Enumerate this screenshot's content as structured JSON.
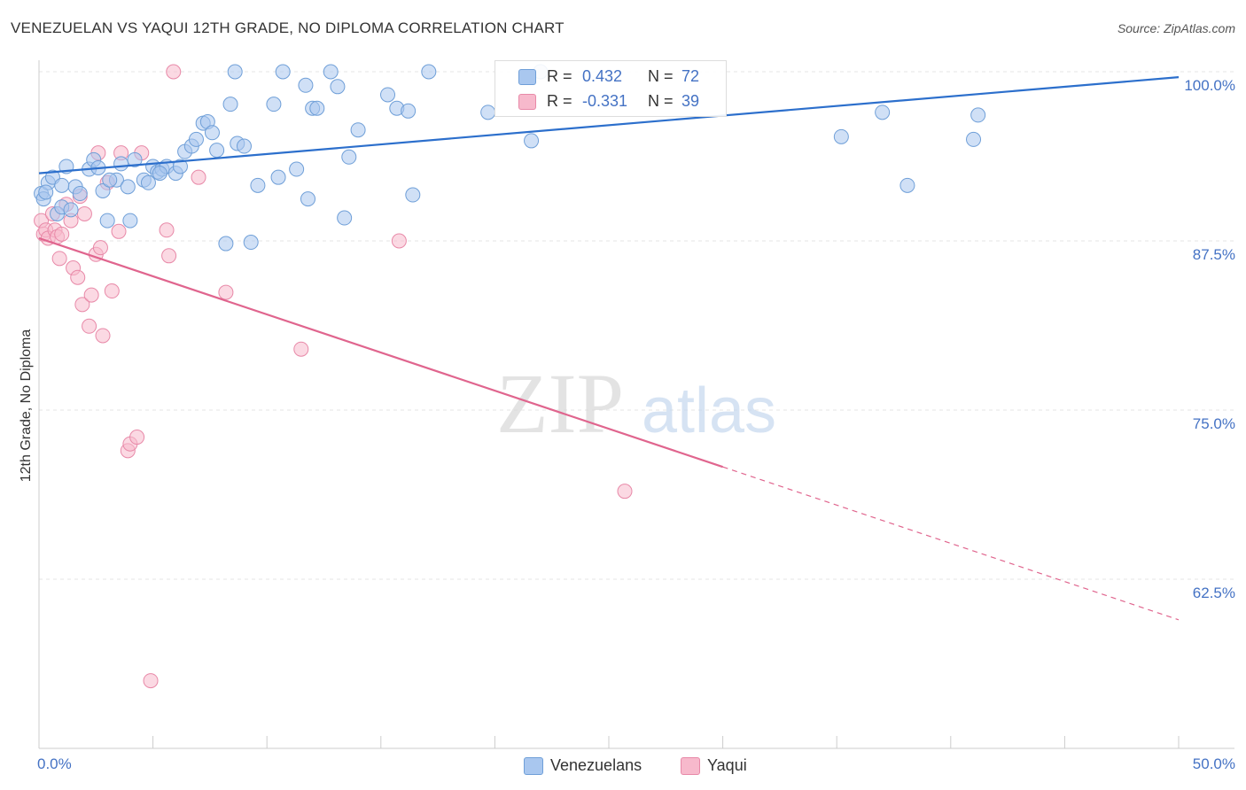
{
  "header": {
    "title": "VENEZUELAN VS YAQUI 12TH GRADE, NO DIPLOMA CORRELATION CHART",
    "source": "Source: ZipAtlas.com"
  },
  "watermark": {
    "zip": "ZIP",
    "atlas": "atlas"
  },
  "legend_top": {
    "rows": [
      {
        "r_label": "R =",
        "r_value": "0.432",
        "n_label": "N =",
        "n_value": "72"
      },
      {
        "r_label": "R =",
        "r_value": "-0.331",
        "n_label": "N =",
        "n_value": "39"
      }
    ]
  },
  "legend_bottom": {
    "series1": "Venezuelans",
    "series2": "Yaqui"
  },
  "colors": {
    "series1_fill": "#a9c7ef",
    "series1_stroke": "#6f9fd8",
    "series1_line": "#2c6fcc",
    "series2_fill": "#f7b9cc",
    "series2_stroke": "#e889a8",
    "series2_line": "#e0658e",
    "tick_label": "#4472c4"
  },
  "chart_data": {
    "type": "scatter",
    "title": "VENEZUELAN VS YAQUI 12TH GRADE, NO DIPLOMA CORRELATION CHART",
    "xlabel": "",
    "ylabel": "12th Grade, No Diploma",
    "xlim": [
      0,
      50
    ],
    "ylim": [
      50,
      102
    ],
    "x_tick_labels": [
      "0.0%",
      "50.0%"
    ],
    "y_ticks": [
      62.5,
      75.0,
      87.5,
      100.0
    ],
    "y_tick_labels": [
      "62.5%",
      "75.0%",
      "87.5%",
      "100.0%"
    ],
    "grid": true,
    "legend_placement": "top-center",
    "series": [
      {
        "name": "Venezuelans",
        "r": 0.432,
        "n": 72,
        "trend": {
          "x": [
            0,
            50
          ],
          "y": [
            92.5,
            99.6
          ]
        },
        "points": [
          [
            0.1,
            91.0
          ],
          [
            0.2,
            90.6
          ],
          [
            0.4,
            91.8
          ],
          [
            0.6,
            92.2
          ],
          [
            0.8,
            89.5
          ],
          [
            1.0,
            90.0
          ],
          [
            1.2,
            93.0
          ],
          [
            1.4,
            89.8
          ],
          [
            1.6,
            91.5
          ],
          [
            1.8,
            91.0
          ],
          [
            2.2,
            92.8
          ],
          [
            2.4,
            93.5
          ],
          [
            2.6,
            92.9
          ],
          [
            2.8,
            91.2
          ],
          [
            3.0,
            89.0
          ],
          [
            3.4,
            92.0
          ],
          [
            3.6,
            93.2
          ],
          [
            3.9,
            91.5
          ],
          [
            4.0,
            89.0
          ],
          [
            4.2,
            93.5
          ],
          [
            4.6,
            92.0
          ],
          [
            4.8,
            91.8
          ],
          [
            5.0,
            93.0
          ],
          [
            5.2,
            92.6
          ],
          [
            5.4,
            92.8
          ],
          [
            5.6,
            93.0
          ],
          [
            6.0,
            92.5
          ],
          [
            6.2,
            93.0
          ],
          [
            6.4,
            94.1
          ],
          [
            6.7,
            94.5
          ],
          [
            6.9,
            95.0
          ],
          [
            7.2,
            96.2
          ],
          [
            7.4,
            96.3
          ],
          [
            7.6,
            95.5
          ],
          [
            7.8,
            94.2
          ],
          [
            8.2,
            87.3
          ],
          [
            8.4,
            97.6
          ],
          [
            8.6,
            100.0
          ],
          [
            8.7,
            94.7
          ],
          [
            9.0,
            94.5
          ],
          [
            9.3,
            87.4
          ],
          [
            9.6,
            91.6
          ],
          [
            10.3,
            97.6
          ],
          [
            10.5,
            92.2
          ],
          [
            10.7,
            100.0
          ],
          [
            11.3,
            92.8
          ],
          [
            11.7,
            99.0
          ],
          [
            11.8,
            90.6
          ],
          [
            12.0,
            97.3
          ],
          [
            12.2,
            97.3
          ],
          [
            12.8,
            100.0
          ],
          [
            13.1,
            98.9
          ],
          [
            13.4,
            89.2
          ],
          [
            13.6,
            93.7
          ],
          [
            14.0,
            95.7
          ],
          [
            15.3,
            98.3
          ],
          [
            15.7,
            97.3
          ],
          [
            16.2,
            97.1
          ],
          [
            16.4,
            90.9
          ],
          [
            17.1,
            100.0
          ],
          [
            19.7,
            97.0
          ],
          [
            21.6,
            94.9
          ],
          [
            22.0,
            100.0
          ],
          [
            35.2,
            95.2
          ],
          [
            37.0,
            97.0
          ],
          [
            38.1,
            91.6
          ],
          [
            41.0,
            95.0
          ],
          [
            41.2,
            96.8
          ],
          [
            0.3,
            91.1
          ],
          [
            1.0,
            91.6
          ],
          [
            3.1,
            92.0
          ],
          [
            5.3,
            92.5
          ]
        ]
      },
      {
        "name": "Yaqui",
        "r": -0.331,
        "n": 39,
        "trend": {
          "x": [
            0,
            30
          ],
          "y": [
            87.7,
            70.8
          ]
        },
        "trend_dashed": {
          "x": [
            30,
            50
          ],
          "y": [
            70.8,
            59.5
          ]
        },
        "points": [
          [
            0.1,
            89.0
          ],
          [
            0.2,
            88.0
          ],
          [
            0.3,
            88.3
          ],
          [
            0.4,
            87.7
          ],
          [
            0.6,
            89.5
          ],
          [
            0.7,
            88.3
          ],
          [
            0.8,
            87.8
          ],
          [
            0.9,
            86.2
          ],
          [
            1.0,
            88.0
          ],
          [
            1.2,
            90.2
          ],
          [
            1.4,
            89.0
          ],
          [
            1.5,
            85.5
          ],
          [
            1.7,
            84.8
          ],
          [
            1.8,
            90.8
          ],
          [
            1.9,
            82.8
          ],
          [
            2.0,
            89.5
          ],
          [
            2.2,
            81.2
          ],
          [
            2.3,
            83.5
          ],
          [
            2.5,
            86.5
          ],
          [
            2.6,
            94.0
          ],
          [
            2.7,
            87.0
          ],
          [
            2.8,
            80.5
          ],
          [
            3.0,
            91.8
          ],
          [
            3.2,
            83.8
          ],
          [
            3.5,
            88.2
          ],
          [
            3.6,
            94.0
          ],
          [
            3.9,
            72.0
          ],
          [
            4.0,
            72.5
          ],
          [
            4.3,
            73.0
          ],
          [
            4.5,
            94.0
          ],
          [
            4.9,
            55.0
          ],
          [
            5.6,
            88.3
          ],
          [
            5.7,
            86.4
          ],
          [
            5.9,
            100.0
          ],
          [
            7.0,
            92.2
          ],
          [
            8.2,
            83.7
          ],
          [
            11.5,
            79.5
          ],
          [
            15.8,
            87.5
          ],
          [
            25.7,
            69.0
          ]
        ]
      }
    ]
  }
}
